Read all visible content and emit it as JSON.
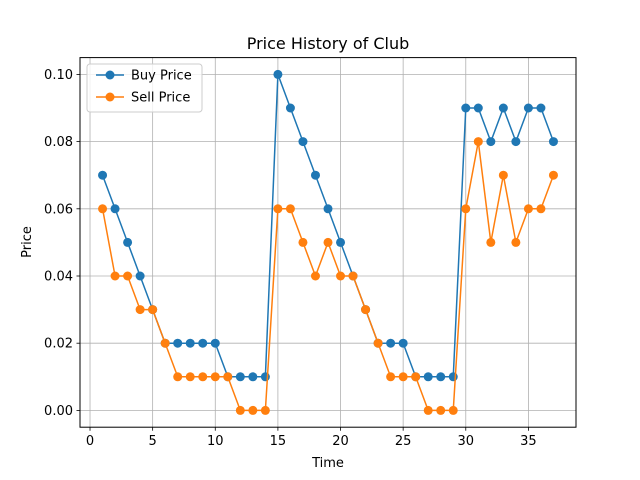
{
  "chart_data": {
    "type": "line",
    "title": "Price History of Club",
    "xlabel": "Time",
    "ylabel": "Price",
    "xlim": [
      -0.8,
      38.8
    ],
    "ylim": [
      -0.005,
      0.105
    ],
    "xticks": [
      0,
      5,
      10,
      15,
      20,
      25,
      30,
      35
    ],
    "yticks": [
      0.0,
      0.02,
      0.04,
      0.06,
      0.08,
      0.1
    ],
    "ytick_labels": [
      "0.00",
      "0.02",
      "0.04",
      "0.06",
      "0.08",
      "0.10"
    ],
    "grid": true,
    "legend_position": "upper-left",
    "x": [
      1,
      2,
      3,
      4,
      5,
      6,
      7,
      8,
      9,
      10,
      11,
      12,
      13,
      14,
      15,
      16,
      17,
      18,
      19,
      20,
      21,
      22,
      23,
      24,
      25,
      26,
      27,
      28,
      29,
      30,
      31,
      32,
      33,
      34,
      35,
      36,
      37
    ],
    "series": [
      {
        "name": "Buy Price",
        "color": "#1f77b4",
        "values": [
          0.07,
          0.06,
          0.05,
          0.04,
          0.03,
          0.02,
          0.02,
          0.02,
          0.02,
          0.02,
          0.01,
          0.01,
          0.01,
          0.01,
          0.1,
          0.09,
          0.08,
          0.07,
          0.06,
          0.05,
          0.04,
          0.03,
          0.02,
          0.02,
          0.02,
          0.01,
          0.01,
          0.01,
          0.01,
          0.09,
          0.09,
          0.08,
          0.09,
          0.08,
          0.09,
          0.09,
          0.08
        ]
      },
      {
        "name": "Sell Price",
        "color": "#ff7f0e",
        "values": [
          0.06,
          0.04,
          0.04,
          0.03,
          0.03,
          0.02,
          0.01,
          0.01,
          0.01,
          0.01,
          0.01,
          0.0,
          0.0,
          0.0,
          0.06,
          0.06,
          0.05,
          0.04,
          0.05,
          0.04,
          0.04,
          0.03,
          0.02,
          0.01,
          0.01,
          0.01,
          0.0,
          0.0,
          0.0,
          0.06,
          0.08,
          0.05,
          0.07,
          0.05,
          0.06,
          0.06,
          0.07
        ]
      }
    ]
  }
}
